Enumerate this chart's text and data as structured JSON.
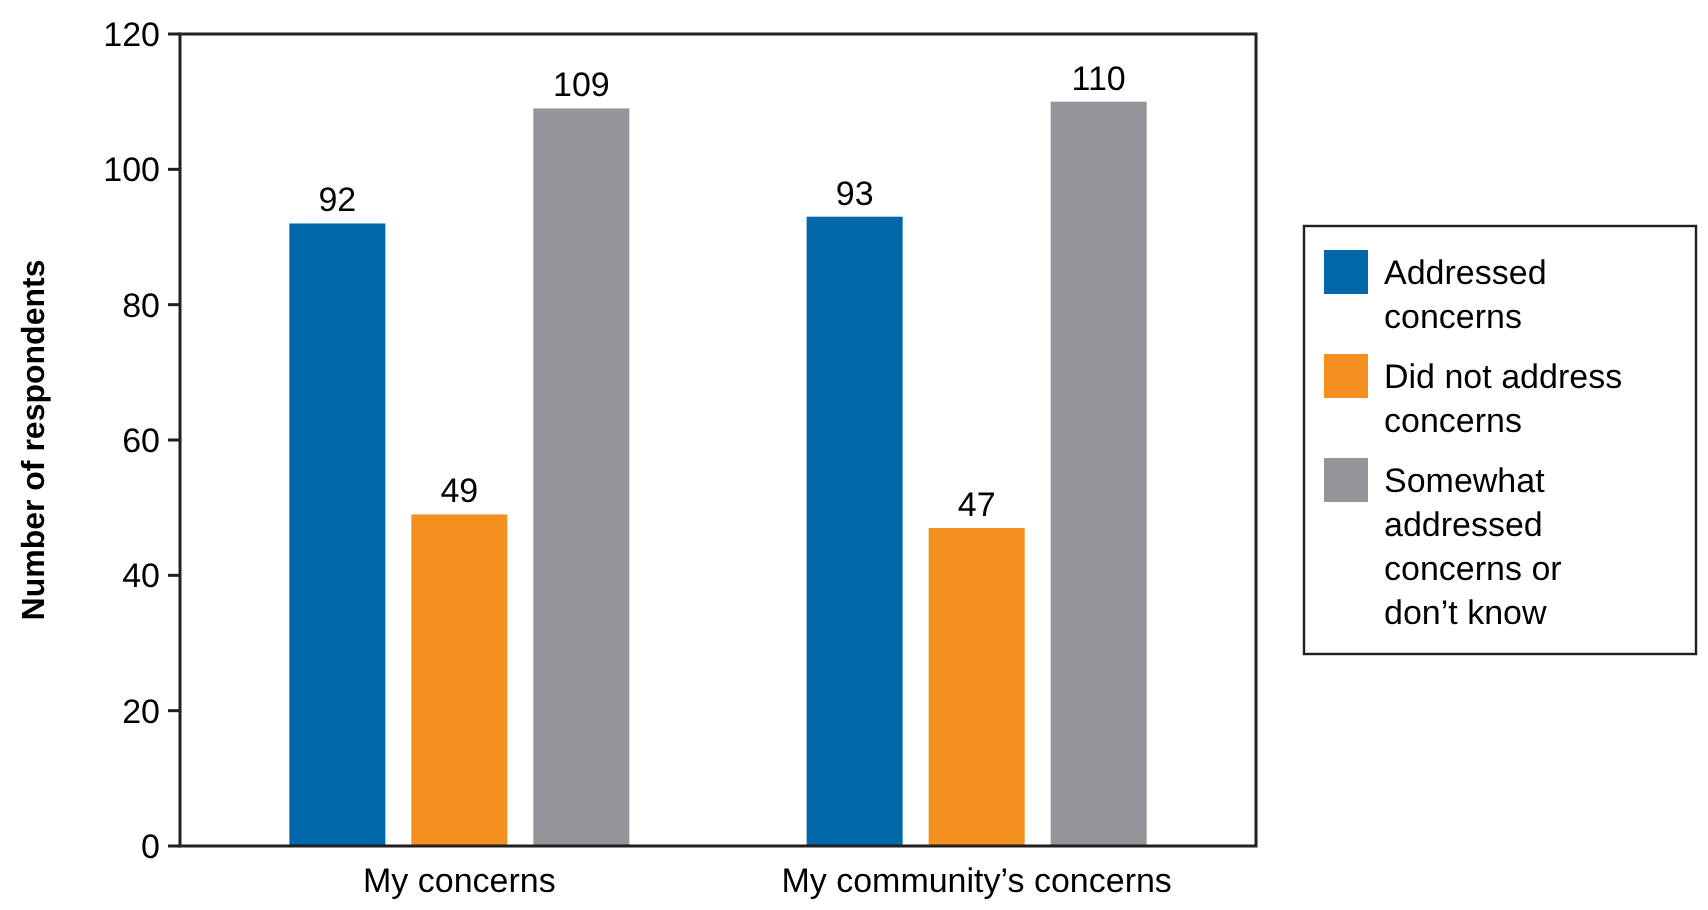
{
  "chart_data": {
    "type": "bar",
    "ylabel": "Number of respondents",
    "categories": [
      "My concerns",
      "My community’s concerns"
    ],
    "series": [
      {
        "name": "Addressed concerns",
        "color": "#0068a8",
        "values": [
          92,
          93
        ]
      },
      {
        "name": "Did not address concerns",
        "color": "#f39020",
        "values": [
          49,
          47
        ]
      },
      {
        "name": "Somewhat addressed concerns or don’t know",
        "color": "#939598",
        "values": [
          109,
          110
        ]
      }
    ],
    "ylim": [
      0,
      120
    ],
    "yticks": [
      0,
      20,
      40,
      60,
      80,
      100,
      120
    ],
    "grid": false,
    "legend": "right",
    "data_labels": true
  }
}
